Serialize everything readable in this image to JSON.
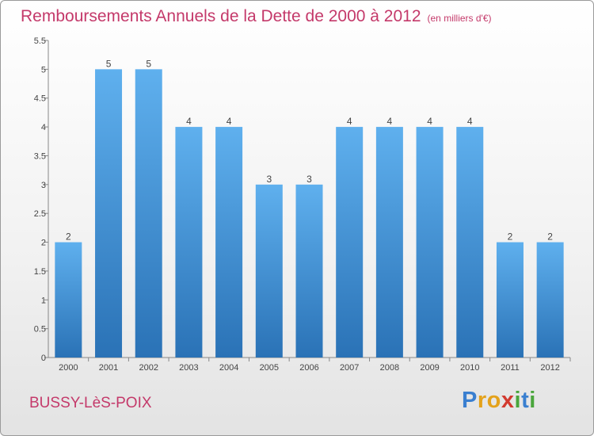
{
  "header": {
    "title": "Remboursements Annuels de la Dette de 2000 à 2012",
    "subtitle": "(en milliers d'€)"
  },
  "footer": {
    "commune": "BUSSY-LèS-POIX",
    "brand_letters": [
      {
        "char": "P",
        "color": "#3a7fd0"
      },
      {
        "char": "r",
        "color": "#e4a21b"
      },
      {
        "char": "o",
        "color": "#e4a21b"
      },
      {
        "char": "x",
        "color": "#d23a2f"
      },
      {
        "char": "i",
        "color": "#4aa63c"
      },
      {
        "char": "t",
        "color": "#3a7fd0"
      },
      {
        "char": "i",
        "color": "#4aa63c"
      }
    ]
  },
  "colors": {
    "bar_top": "#5fb0ee",
    "bar_bottom": "#2a72b6",
    "title": "#c4396a"
  },
  "chart_data": {
    "type": "bar",
    "title": "Remboursements Annuels de la Dette de 2000 à 2012",
    "xlabel": "",
    "ylabel": "",
    "categories": [
      "2000",
      "2001",
      "2002",
      "2003",
      "2004",
      "2005",
      "2006",
      "2007",
      "2008",
      "2009",
      "2010",
      "2011",
      "2012"
    ],
    "values": [
      2,
      5,
      5,
      4,
      4,
      3,
      3,
      4,
      4,
      4,
      4,
      2,
      2
    ],
    "value_labels": [
      "2",
      "5",
      "5",
      "4",
      "4",
      "3",
      "3",
      "4",
      "4",
      "4",
      "4",
      "2",
      "2"
    ],
    "ylim": [
      0,
      5.5
    ],
    "y_ticks": [
      "0",
      "0.5",
      "1",
      "1.5",
      "2",
      "2.5",
      "3",
      "3.5",
      "4",
      "4.5",
      "5",
      "5.5"
    ],
    "grid": false,
    "legend": "none"
  }
}
